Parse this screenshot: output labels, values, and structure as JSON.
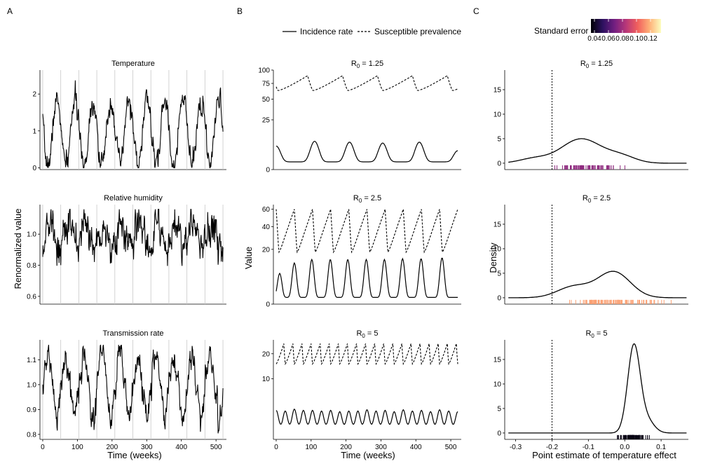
{
  "figure": {
    "panel_labels": [
      "A",
      "B",
      "C"
    ],
    "legend": {
      "incidence_label": "Incidence rate",
      "susceptible_label": "Susceptible prevalence"
    },
    "colorbar": {
      "title": "Standard error",
      "tick_labels": [
        "0.04",
        "0.06",
        "0.08",
        "0.10",
        "0.12"
      ],
      "tick_values": [
        0.04,
        0.06,
        0.08,
        0.1,
        0.12
      ],
      "range": [
        0.035,
        0.135
      ],
      "colors": [
        "#000004",
        "#2c115f",
        "#721f81",
        "#b73779",
        "#f1605d",
        "#feb078",
        "#fcfdbf"
      ]
    },
    "shared_x_label": "Time (weeks)",
    "panel_a_ylabel": "Renormalized value",
    "panel_b_ylabel": "Value",
    "panel_c_ylabel": "Density",
    "panel_c_xlabel": "Point estimate of temperature effect",
    "r0_prefix": "R",
    "r0_subscript": "0"
  },
  "chart_data": [
    {
      "id": "a1",
      "type": "line",
      "title": "Temperature",
      "xlim": [
        -8,
        530
      ],
      "ylim": [
        -0.05,
        2.65
      ],
      "x_ticks": [
        0,
        100,
        200,
        300,
        400,
        500
      ],
      "x_tick_labels": [
        "0",
        "100",
        "200",
        "300",
        "400",
        "500"
      ],
      "y_ticks": [
        0,
        1,
        2
      ],
      "y_tick_labels": [
        "0",
        "1",
        "2"
      ],
      "vlines": [
        0,
        52,
        104,
        156,
        208,
        260,
        312,
        364,
        416,
        468,
        520
      ],
      "series": [
        {
          "name": "Temperature",
          "weeks": 520,
          "mean": 0.95,
          "amp": 0.85,
          "shape": 1.4,
          "phase": 28,
          "noise": 0.14,
          "seed": 7,
          "min": 0.0,
          "max": 2.55
        }
      ]
    },
    {
      "id": "a2",
      "type": "line",
      "title": "Relative humidity",
      "xlim": [
        -8,
        530
      ],
      "ylim": [
        0.55,
        1.19
      ],
      "x_ticks": [
        0,
        100,
        200,
        300,
        400,
        500
      ],
      "x_tick_labels": [
        "0",
        "100",
        "200",
        "300",
        "400",
        "500"
      ],
      "y_ticks": [
        0.6,
        0.8,
        1.0
      ],
      "y_tick_labels": [
        "0.6",
        "0.8",
        "1.0"
      ],
      "vlines": [
        0,
        52,
        104,
        156,
        208,
        260,
        312,
        364,
        416,
        468,
        520
      ],
      "series": [
        {
          "name": "Relative humidity",
          "weeks": 520,
          "mean": 0.99,
          "amp": 0.07,
          "shape": 1.0,
          "phase": 6,
          "noise": 0.055,
          "seed": 13,
          "min": 0.59,
          "max": 1.16
        }
      ]
    },
    {
      "id": "a3",
      "type": "line",
      "title": "Transmission rate",
      "xlim": [
        -8,
        530
      ],
      "ylim": [
        0.78,
        1.18
      ],
      "x_ticks": [
        0,
        100,
        200,
        300,
        400,
        500
      ],
      "x_tick_labels": [
        "0",
        "100",
        "200",
        "300",
        "400",
        "500"
      ],
      "y_ticks": [
        0.8,
        0.9,
        1.0,
        1.1
      ],
      "y_tick_labels": [
        "0.8",
        "0.9",
        "1.0",
        "1.1"
      ],
      "vlines": [
        0,
        52,
        104,
        156,
        208,
        260,
        312,
        364,
        416,
        468,
        520
      ],
      "series": [
        {
          "name": "Transmission rate",
          "weeks": 520,
          "mean": 1.0,
          "amp": 0.13,
          "shape": 0.7,
          "phase": 2,
          "noise": 0.025,
          "seed": 21,
          "min": 0.8,
          "max": 1.16
        }
      ]
    },
    {
      "id": "b1",
      "type": "line",
      "title_r0": "1.25",
      "xlim": [
        -8,
        530
      ],
      "y_scale": "sqrt",
      "ylim": [
        0,
        100
      ],
      "x_ticks": [
        0,
        100,
        200,
        300,
        400,
        500
      ],
      "x_tick_labels": [
        "0",
        "100",
        "200",
        "300",
        "400",
        "500"
      ],
      "y_ticks": [
        0,
        25,
        50,
        75,
        100
      ],
      "y_tick_labels": [
        "0",
        "25",
        "50",
        "75",
        "100"
      ],
      "epidemic_peaks": [
        [
          0,
          5
        ],
        [
          110,
          7.5
        ],
        [
          210,
          7
        ],
        [
          305,
          6.5
        ],
        [
          410,
          7
        ],
        [
          520,
          3
        ]
      ],
      "susceptible": {
        "base": 63,
        "top": 89,
        "period": 100,
        "offset": 10
      },
      "series": [
        {
          "name": "Incidence rate",
          "style": "solid",
          "baseline": 0.6,
          "width": 10
        },
        {
          "name": "Susceptible prevalence",
          "style": "dashed"
        }
      ]
    },
    {
      "id": "b2",
      "type": "line",
      "title_r0": "2.5",
      "xlim": [
        -8,
        530
      ],
      "y_scale": "sqrt",
      "ylim": [
        0,
        66
      ],
      "x_ticks": [
        0,
        100,
        200,
        300,
        400,
        500
      ],
      "x_tick_labels": [
        "0",
        "100",
        "200",
        "300",
        "400",
        "500"
      ],
      "y_ticks": [
        0,
        20,
        40,
        60
      ],
      "y_tick_labels": [
        "0",
        "20",
        "40",
        "60"
      ],
      "epidemic_peaks": [
        [
          10,
          6
        ],
        [
          52,
          11
        ],
        [
          102,
          13
        ],
        [
          155,
          13
        ],
        [
          205,
          13
        ],
        [
          258,
          13
        ],
        [
          310,
          13
        ],
        [
          362,
          13.5
        ],
        [
          415,
          13.5
        ],
        [
          475,
          14
        ]
      ],
      "susceptible": {
        "base": 18,
        "top": 60,
        "period": 52,
        "offset": 0
      },
      "series": [
        {
          "name": "Incidence rate",
          "style": "solid",
          "baseline": 0.3,
          "width": 5
        },
        {
          "name": "Susceptible prevalence",
          "style": "dashed"
        }
      ]
    },
    {
      "id": "b3",
      "type": "line",
      "title_r0": "5",
      "xlim": [
        -8,
        530
      ],
      "y_scale": "sqrt",
      "ylim": [
        0,
        27
      ],
      "x_ticks": [
        0,
        100,
        200,
        300,
        400,
        500
      ],
      "x_tick_labels": [
        "0",
        "100",
        "200",
        "300",
        "400",
        "500"
      ],
      "y_ticks": [
        10,
        20
      ],
      "y_tick_labels": [
        "10",
        "20"
      ],
      "epidemic_peaks": [
        [
          0,
          1.8
        ],
        [
          26,
          1.7
        ],
        [
          52,
          2.0
        ],
        [
          78,
          1.8
        ],
        [
          104,
          1.8
        ],
        [
          130,
          1.7
        ],
        [
          156,
          1.8
        ],
        [
          182,
          1.6
        ],
        [
          208,
          1.7
        ],
        [
          234,
          1.7
        ],
        [
          260,
          1.9
        ],
        [
          286,
          1.7
        ],
        [
          312,
          1.8
        ],
        [
          338,
          1.6
        ],
        [
          364,
          1.9
        ],
        [
          390,
          1.7
        ],
        [
          416,
          1.8
        ],
        [
          442,
          1.6
        ],
        [
          468,
          1.9
        ],
        [
          494,
          1.7
        ],
        [
          520,
          1.6
        ]
      ],
      "susceptible": {
        "base": 15.5,
        "top": 25,
        "period": 26,
        "offset": 4
      },
      "series": [
        {
          "name": "Incidence rate",
          "style": "solid",
          "baseline": 0.5,
          "width": 5
        },
        {
          "name": "Susceptible prevalence",
          "style": "dashed"
        }
      ]
    },
    {
      "id": "c1",
      "type": "area",
      "title_r0": "1.25",
      "xlim": [
        -0.33,
        0.175
      ],
      "ylim": [
        -1.3,
        19
      ],
      "x_ticks": [
        -0.3,
        -0.2,
        -0.1,
        0.0,
        0.1
      ],
      "x_tick_labels": [
        "-0.3",
        "-0.2",
        "-0.1",
        "0.0",
        "0.1"
      ],
      "y_ticks": [
        0,
        5,
        10,
        15
      ],
      "y_tick_labels": [
        "0",
        "5",
        "10",
        "15"
      ],
      "reference_line": -0.2,
      "density_components": [
        [
          -0.12,
          0.055,
          0.75
        ],
        [
          -0.25,
          0.04,
          0.1
        ],
        [
          -0.01,
          0.04,
          0.15
        ]
      ],
      "peak_density": 5.0,
      "rug": {
        "center": -0.11,
        "spread": 0.045,
        "count": 90,
        "min": -0.305,
        "max": 0.055,
        "se": 0.075
      },
      "series": [
        {
          "name": "Density",
          "values_label": "density"
        }
      ]
    },
    {
      "id": "c2",
      "type": "area",
      "title_r0": "2.5",
      "xlim": [
        -0.33,
        0.175
      ],
      "ylim": [
        -1.3,
        19
      ],
      "x_ticks": [
        -0.3,
        -0.2,
        -0.1,
        0.0,
        0.1
      ],
      "x_tick_labels": [
        "-0.3",
        "-0.2",
        "-0.1",
        "0.0",
        "0.1"
      ],
      "y_ticks": [
        0,
        5,
        10,
        15
      ],
      "y_tick_labels": [
        "0",
        "5",
        "10",
        "15"
      ],
      "reference_line": -0.2,
      "density_components": [
        [
          -0.03,
          0.045,
          0.7
        ],
        [
          -0.14,
          0.045,
          0.3
        ]
      ],
      "peak_density": 5.4,
      "rug": {
        "center": -0.03,
        "spread": 0.06,
        "count": 110,
        "min": -0.195,
        "max": 0.17,
        "se": 0.115
      },
      "series": [
        {
          "name": "Density",
          "values_label": "density"
        }
      ]
    },
    {
      "id": "c3",
      "type": "area",
      "title_r0": "5",
      "xlim": [
        -0.33,
        0.175
      ],
      "ylim": [
        -1.3,
        19
      ],
      "x_ticks": [
        -0.3,
        -0.2,
        -0.1,
        0.0,
        0.1
      ],
      "x_tick_labels": [
        "-0.3",
        "-0.2",
        "-0.1",
        "0.0",
        "0.1"
      ],
      "y_ticks": [
        0,
        5,
        10,
        15
      ],
      "y_tick_labels": [
        "0",
        "5",
        "10",
        "15"
      ],
      "reference_line": -0.2,
      "density_components": [
        [
          0.025,
          0.017,
          0.85
        ],
        [
          0.06,
          0.02,
          0.15
        ]
      ],
      "peak_density": 18.2,
      "rug": {
        "center": 0.022,
        "spread": 0.02,
        "count": 120,
        "min": -0.02,
        "max": 0.085,
        "se": 0.038
      },
      "series": [
        {
          "name": "Density",
          "values_label": "density"
        }
      ]
    }
  ]
}
